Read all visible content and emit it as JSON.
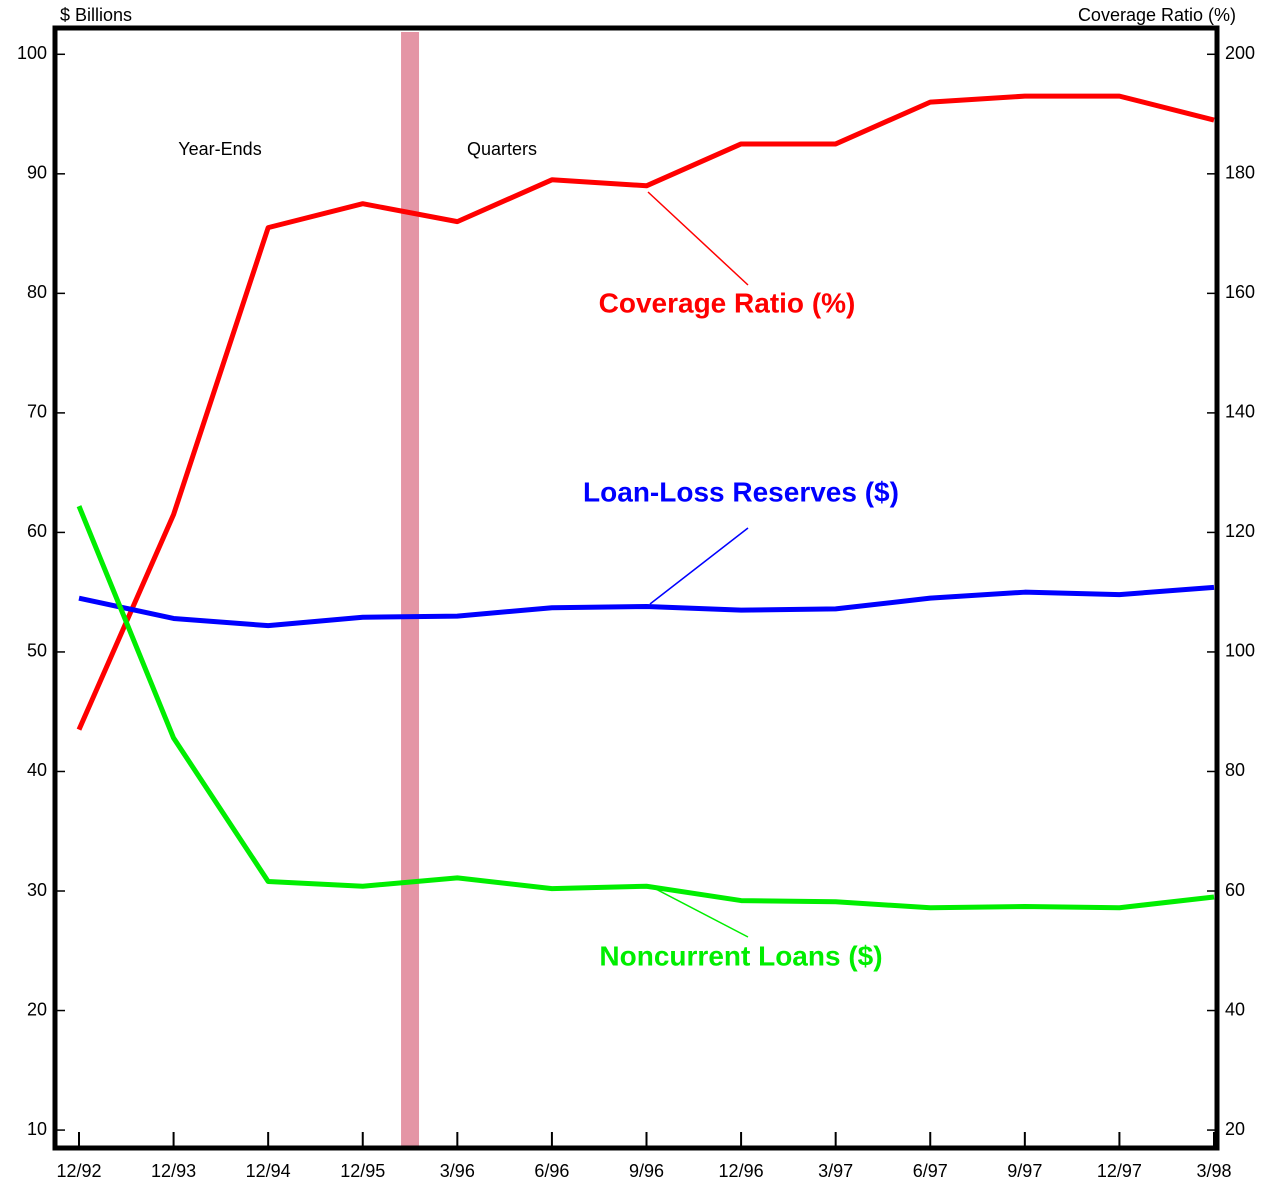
{
  "chart_data": {
    "type": "line",
    "y_label": "$ Billions",
    "y2_label": "Coverage Ratio (%)",
    "annotations": [
      "Year-Ends",
      "Quarters"
    ],
    "categories": [
      "12/92",
      "12/93",
      "12/94",
      "12/95",
      "3/96",
      "6/96",
      "9/96",
      "12/96",
      "3/97",
      "6/97",
      "9/97",
      "12/97",
      "3/98"
    ],
    "series": [
      {
        "name": "Coverage Ratio (%)",
        "color": "#ff0000",
        "axis": "y2",
        "values": [
          87,
          123,
          171,
          175,
          172,
          179,
          178,
          185,
          185,
          192,
          193,
          193,
          189
        ]
      },
      {
        "name": "Loan-Loss Reserves ($)",
        "color": "#0000ff",
        "values": [
          54.5,
          52.8,
          52.2,
          52.9,
          53.0,
          53.7,
          53.8,
          53.5,
          53.6,
          54.5,
          55.0,
          54.8,
          55.4
        ]
      },
      {
        "name": "Noncurrent Loans ($)",
        "color": "#00ee00",
        "values": [
          62.2,
          42.8,
          30.8,
          30.4,
          31.1,
          30.2,
          30.4,
          29.2,
          29.1,
          28.6,
          28.7,
          28.6,
          29.5
        ]
      }
    ],
    "ylim": [
      8.5,
      102.2
    ],
    "yticks": [
      10,
      20,
      30,
      40,
      50,
      60,
      70,
      80,
      90,
      100
    ],
    "y2lim": [
      17,
      204.4
    ],
    "y2ticks": [
      20,
      40,
      60,
      80,
      100,
      120,
      140,
      160,
      180,
      200
    ]
  }
}
